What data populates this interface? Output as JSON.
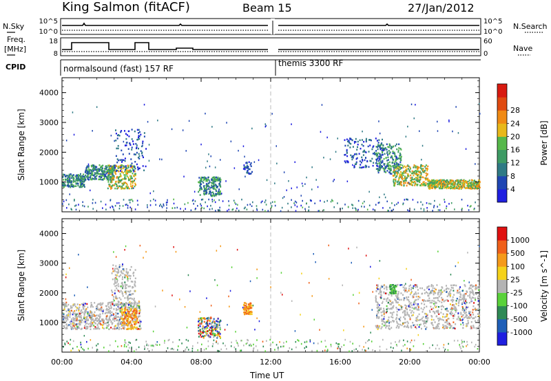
{
  "header": {
    "title": "King Salmon (fitACF)",
    "beam": "Beam 15",
    "date": "27/Jan/2012"
  },
  "strip_labels": {
    "nsky": "N.Sky",
    "nsearch": "N.Search",
    "freq": "Freq.",
    "freq_unit": "[MHz]",
    "nave": "Nave",
    "cpid": "CPID",
    "nsky_ticks": [
      "10^5",
      "10^0"
    ],
    "nsearch_ticks": [
      "10^5",
      "10^0"
    ],
    "freq_ticks": [
      "18",
      "8"
    ],
    "nave_ticks": [
      "60",
      "0"
    ],
    "cpid_left": "normalsound (fast) 157 RF",
    "cpid_right": "themis 3300 RF"
  },
  "chart_data": [
    {
      "type": "heatmap",
      "title": "",
      "xlabel": "",
      "ylabel": "Slant Range [km]",
      "x_range_hours": [
        0,
        24
      ],
      "ylim": [
        0,
        4500
      ],
      "y_ticks": [
        "1000",
        "2000",
        "3000",
        "4000"
      ],
      "x_ticks": [
        "00:00",
        "04:00",
        "08:00",
        "12:00",
        "16:00",
        "20:00",
        "00:00"
      ],
      "colorbar": {
        "label": "Power [dB]",
        "ticks": [
          "4",
          "8",
          "12",
          "16",
          "20",
          "24",
          "28"
        ],
        "colors": [
          "#1f1fe0",
          "#1f46b3",
          "#2f7a85",
          "#3e9b64",
          "#56b84a",
          "#e8b81a",
          "#f08a14",
          "#e04a10",
          "#d81a10"
        ]
      },
      "echo_regions": [
        {
          "t_start": 0.0,
          "t_end": 1.3,
          "r_low": 850,
          "r_high": 1300,
          "level": "medium"
        },
        {
          "t_start": 1.3,
          "t_end": 3.0,
          "r_low": 1100,
          "r_high": 1600,
          "level": "medium"
        },
        {
          "t_start": 2.6,
          "t_end": 4.2,
          "r_low": 800,
          "r_high": 1600,
          "level": "high"
        },
        {
          "t_start": 3.0,
          "t_end": 4.8,
          "r_low": 1400,
          "r_high": 2800,
          "level": "low"
        },
        {
          "t_start": 7.8,
          "t_end": 9.1,
          "r_low": 550,
          "r_high": 1200,
          "level": "medium"
        },
        {
          "t_start": 10.4,
          "t_end": 10.9,
          "r_low": 1300,
          "r_high": 1700,
          "level": "low"
        },
        {
          "t_start": 18.0,
          "t_end": 19.5,
          "r_low": 1300,
          "r_high": 2300,
          "level": "medium"
        },
        {
          "t_start": 19.0,
          "t_end": 21.0,
          "r_low": 900,
          "r_high": 1600,
          "level": "high"
        },
        {
          "t_start": 21.0,
          "t_end": 24.0,
          "r_low": 800,
          "r_high": 1100,
          "level": "high"
        },
        {
          "t_start": 16.2,
          "t_end": 18.5,
          "r_low": 1500,
          "r_high": 2500,
          "level": "low"
        }
      ]
    },
    {
      "type": "heatmap",
      "title": "",
      "xlabel": "Time UT",
      "ylabel": "Slant Range [km]",
      "x_range_hours": [
        0,
        24
      ],
      "ylim": [
        0,
        4500
      ],
      "y_ticks": [
        "1000",
        "2000",
        "3000",
        "4000"
      ],
      "x_ticks": [
        "00:00",
        "04:00",
        "08:00",
        "12:00",
        "16:00",
        "20:00",
        "00:00"
      ],
      "colorbar": {
        "label": "Velocity [m s^-1]",
        "ticks": [
          "1000",
          "500",
          "100",
          "25",
          "-25",
          "-100",
          "-500",
          "-1000"
        ],
        "colors": [
          "#1f1fe0",
          "#1f5fb8",
          "#2f8a55",
          "#5ad23a",
          "#b4b4b4",
          "#f5d21a",
          "#f59a1a",
          "#f0601a",
          "#e01010"
        ]
      },
      "echo_regions": [
        {
          "t_start": 0.0,
          "t_end": 4.5,
          "r_low": 800,
          "r_high": 1700,
          "level": "grey"
        },
        {
          "t_start": 2.8,
          "t_end": 4.2,
          "r_low": 1500,
          "r_high": 3000,
          "level": "grey"
        },
        {
          "t_start": 3.4,
          "t_end": 4.3,
          "r_low": 800,
          "r_high": 1500,
          "level": "orange"
        },
        {
          "t_start": 7.8,
          "t_end": 9.1,
          "r_low": 500,
          "r_high": 1200,
          "level": "mixed"
        },
        {
          "t_start": 10.4,
          "t_end": 10.9,
          "r_low": 1300,
          "r_high": 1700,
          "level": "orange"
        },
        {
          "t_start": 18.0,
          "t_end": 24.0,
          "r_low": 800,
          "r_high": 2300,
          "level": "grey"
        },
        {
          "t_start": 18.8,
          "t_end": 19.2,
          "r_low": 2000,
          "r_high": 2300,
          "level": "green"
        }
      ]
    }
  ]
}
